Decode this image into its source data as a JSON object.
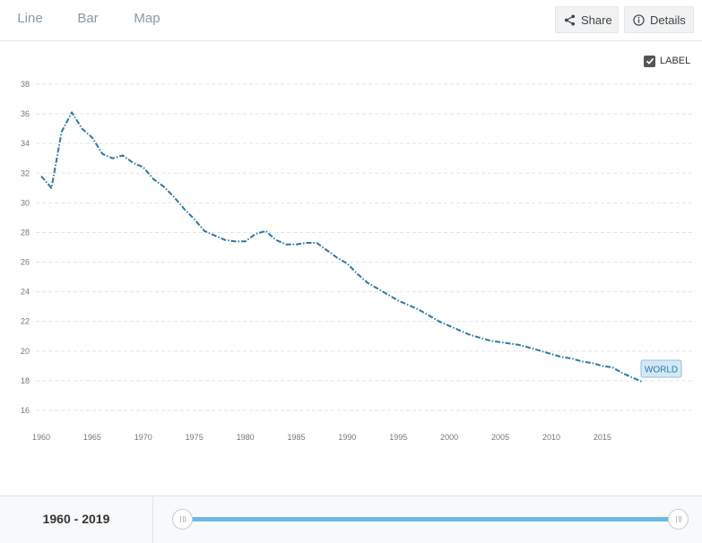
{
  "tabs": [
    {
      "label": "Line",
      "active": true
    },
    {
      "label": "Bar",
      "active": false
    },
    {
      "label": "Map",
      "active": false
    }
  ],
  "toolbar": {
    "share_label": "Share",
    "share_icon": "share-icon",
    "details_label": "Details",
    "details_icon": "info-icon"
  },
  "label_toggle": {
    "label": "LABEL",
    "checked": true
  },
  "colors": {
    "accent": "#2d9fd9",
    "series": "#2b79a8",
    "slider": "#6bbbe6"
  },
  "chart_data": {
    "type": "line",
    "title": "",
    "xlabel": "",
    "ylabel": "",
    "xlim": [
      1960,
      2019
    ],
    "ylim": [
      15,
      38
    ],
    "x_ticks": [
      "1960",
      "1965",
      "1970",
      "1975",
      "1980",
      "1985",
      "1990",
      "1995",
      "2000",
      "2005",
      "2010",
      "2015"
    ],
    "y_ticks": [
      "16",
      "18",
      "20",
      "22",
      "24",
      "26",
      "28",
      "30",
      "32",
      "34",
      "36",
      "38"
    ],
    "grid": "horizontal-dashed",
    "series": [
      {
        "name": "WORLD",
        "x": [
          1960,
          1961,
          1962,
          1963,
          1964,
          1965,
          1966,
          1967,
          1968,
          1969,
          1970,
          1971,
          1972,
          1973,
          1974,
          1975,
          1976,
          1977,
          1978,
          1979,
          1980,
          1981,
          1982,
          1983,
          1984,
          1985,
          1986,
          1987,
          1988,
          1989,
          1990,
          1991,
          1992,
          1993,
          1994,
          1995,
          1996,
          1997,
          1998,
          1999,
          2000,
          2001,
          2002,
          2003,
          2004,
          2005,
          2006,
          2007,
          2008,
          2009,
          2010,
          2011,
          2012,
          2013,
          2014,
          2015,
          2016,
          2017,
          2018,
          2019
        ],
        "values": [
          31.8,
          31.0,
          34.8,
          36.1,
          35.0,
          34.4,
          33.3,
          33.0,
          33.2,
          32.7,
          32.4,
          31.6,
          31.1,
          30.4,
          29.6,
          28.9,
          28.1,
          27.8,
          27.5,
          27.4,
          27.4,
          27.9,
          28.1,
          27.5,
          27.2,
          27.2,
          27.3,
          27.3,
          26.8,
          26.3,
          25.9,
          25.2,
          24.6,
          24.2,
          23.8,
          23.4,
          23.1,
          22.8,
          22.4,
          22.0,
          21.7,
          21.4,
          21.1,
          20.9,
          20.7,
          20.6,
          20.5,
          20.4,
          20.2,
          20.0,
          19.8,
          19.6,
          19.5,
          19.3,
          19.2,
          19.0,
          18.9,
          18.5,
          18.2,
          17.9
        ]
      }
    ]
  },
  "footer": {
    "range_start": "1960",
    "range_sep": " - ",
    "range_end": "2019"
  }
}
